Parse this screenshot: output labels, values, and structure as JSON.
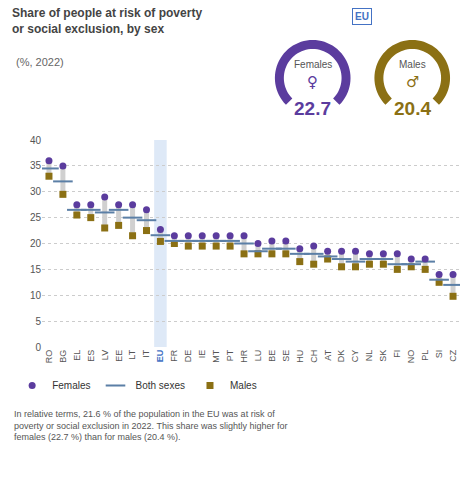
{
  "chart_data": {
    "type": "dot",
    "title": "Share of people at risk of poverty\nor social exclusion, by sex",
    "subtitle": "(%, 2022)",
    "categories": [
      "RO",
      "BG",
      "EL",
      "ES",
      "LV",
      "EE",
      "LT",
      "IT",
      "EU",
      "FR",
      "DE",
      "IE",
      "MT",
      "PT",
      "HR",
      "LU",
      "BE",
      "SE",
      "HU",
      "CH",
      "AT",
      "DK",
      "CY",
      "NL",
      "SK",
      "FI",
      "NO",
      "PL",
      "SI",
      "CZ"
    ],
    "series": [
      {
        "name": "Females",
        "color": "#5B3C9E",
        "marker": "circle",
        "values": [
          36.0,
          35.0,
          27.5,
          27.5,
          29.0,
          27.5,
          27.5,
          26.5,
          22.7,
          21.5,
          21.5,
          21.5,
          21.5,
          21.5,
          21.5,
          20.0,
          20.5,
          20.5,
          19.0,
          19.5,
          18.5,
          18.5,
          18.5,
          18.0,
          18.0,
          18.0,
          17.0,
          17.0,
          14.0,
          14.0
        ]
      },
      {
        "name": "Both sexes",
        "color": "#5B7FA6",
        "marker": "line-ew",
        "values": [
          34.5,
          32.0,
          26.5,
          26.5,
          26.0,
          26.5,
          25.0,
          24.5,
          21.6,
          20.5,
          20.5,
          20.5,
          20.5,
          20.5,
          20.0,
          18.5,
          19.0,
          19.0,
          18.0,
          18.0,
          17.5,
          17.0,
          16.5,
          17.0,
          17.0,
          16.0,
          16.0,
          16.5,
          13.0,
          12.0
        ]
      },
      {
        "name": "Males",
        "color": "#8B7014",
        "marker": "square",
        "values": [
          33.0,
          29.5,
          25.5,
          25.0,
          23.0,
          23.5,
          21.5,
          22.5,
          20.4,
          20.0,
          19.5,
          19.5,
          19.5,
          19.5,
          18.0,
          18.0,
          18.0,
          18.0,
          16.5,
          16.0,
          17.0,
          15.5,
          15.5,
          16.0,
          16.0,
          15.0,
          15.5,
          15.0,
          12.5,
          9.8
        ]
      }
    ],
    "ylim": [
      0,
      40
    ],
    "yticks": [
      0,
      5,
      10,
      15,
      20,
      25,
      30,
      35,
      40
    ],
    "grid": true,
    "legend": "bottom-left",
    "highlight": {
      "category": "EU",
      "color": "#D6E4F5",
      "label_color": "#4472C4"
    },
    "gauges": {
      "badge": "EU",
      "items": [
        {
          "label": "Females",
          "symbol": "♀",
          "value": 22.7,
          "color": "#5B3C9E"
        },
        {
          "label": "Males",
          "symbol": "♂",
          "value": 20.4,
          "color": "#8B7014"
        }
      ]
    },
    "note": "In relative terms, 21.6 % of the population in the EU was at risk of\npoverty or social exclusion in 2022. This share was slightly higher for\nfemales (22.7 %) than for males (20.4 %)."
  }
}
